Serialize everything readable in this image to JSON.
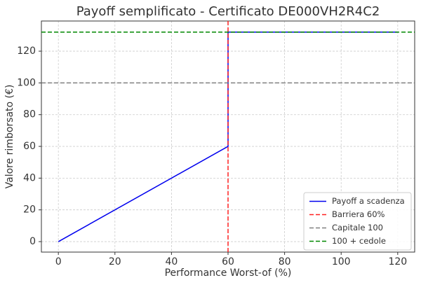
{
  "chart_data": {
    "type": "line",
    "title": "Payoff semplificato - Certificato DE000VH2R4C2",
    "x_label": "Performance Worst-of (%)",
    "y_label": "Valore rimborsato (€)",
    "xlim": [
      -6,
      126
    ],
    "ylim": [
      -6.6,
      139
    ],
    "xticks": [
      0,
      20,
      40,
      60,
      80,
      100,
      120
    ],
    "yticks": [
      0,
      20,
      40,
      60,
      80,
      100,
      120
    ],
    "grid": true,
    "legend": "lower right",
    "series": [
      {
        "name": "Payoff a scadenza",
        "color": "#0000ee",
        "style": "solid",
        "x": [
          0,
          60,
          60,
          120
        ],
        "values": [
          0,
          60,
          132,
          132
        ]
      },
      {
        "name": "Barriera 60%",
        "color": "#ff2020",
        "style": "dashed",
        "vline": 60
      },
      {
        "name": "Capitale 100",
        "color": "#808080",
        "style": "dashed",
        "hline": 100
      },
      {
        "name": "100 + cedole",
        "color": "#008800",
        "style": "dashed",
        "hline": 132
      }
    ]
  }
}
